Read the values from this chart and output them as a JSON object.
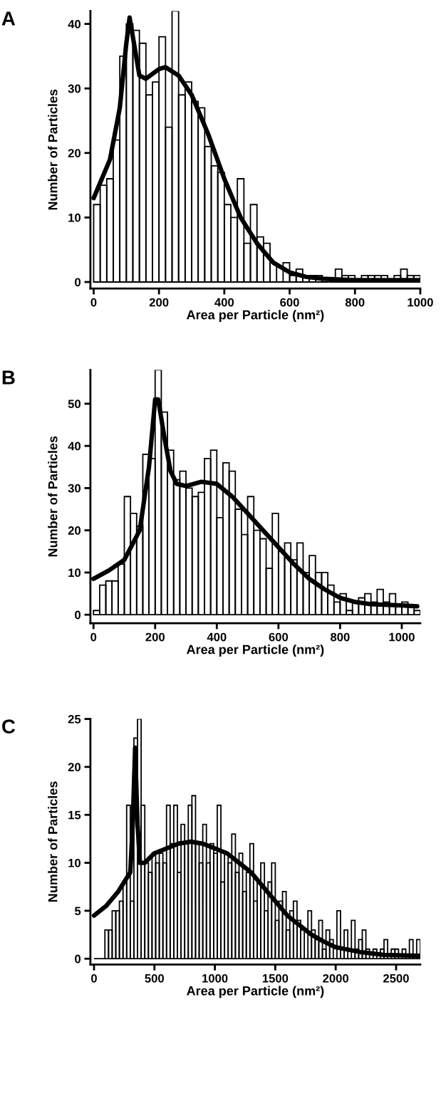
{
  "chart_data": [
    {
      "type": "histogram",
      "title": "A",
      "xlabel": "Area per Particle (nm²)",
      "ylabel": "Number of Particles",
      "xlim": [
        -10,
        1000
      ],
      "ylim": [
        -1,
        42
      ],
      "xticks": [
        0,
        200,
        400,
        600,
        800,
        1000
      ],
      "yticks": [
        0,
        10,
        20,
        30,
        40
      ],
      "grid": false,
      "legend": false,
      "marker": "none",
      "series": [
        {
          "color": "#000000",
          "bins": [
            0,
            20,
            40,
            60,
            80,
            100,
            120,
            140,
            160,
            180,
            200,
            220,
            240,
            260,
            280,
            300,
            320,
            340,
            360,
            380,
            400,
            420,
            440,
            460,
            480,
            500,
            520,
            540,
            560,
            580,
            600,
            620,
            640,
            660,
            680,
            700,
            720,
            740,
            760,
            780,
            800,
            820,
            840,
            860,
            880,
            900,
            920,
            940,
            960,
            980,
            1000
          ],
          "values": [
            12,
            15,
            16,
            22,
            35,
            40,
            39,
            37,
            29,
            31,
            38,
            24,
            42,
            29,
            31,
            28,
            27,
            21,
            18,
            17,
            12,
            10,
            16,
            6,
            12,
            7,
            6,
            3,
            0,
            3,
            1,
            2,
            1,
            1,
            1,
            0,
            0,
            2,
            1,
            1,
            0,
            1,
            1,
            1,
            1,
            0,
            1,
            2,
            1,
            1
          ]
        },
        {
          "type": "line",
          "color": "#000000",
          "x": [
            0,
            50,
            80,
            100,
            110,
            120,
            140,
            160,
            200,
            220,
            260,
            300,
            350,
            400,
            450,
            500,
            550,
            600,
            650,
            700,
            800,
            1000
          ],
          "values": [
            13,
            19,
            27,
            37,
            41,
            38,
            32,
            31.5,
            33,
            33.3,
            32,
            29,
            23,
            16,
            10,
            6,
            3,
            1.5,
            0.8,
            0.5,
            0.3,
            0.3
          ]
        }
      ]
    },
    {
      "type": "histogram",
      "title": "B",
      "xlabel": "Area per Particle (nm²)",
      "ylabel": "Number of Particles",
      "xlim": [
        -10,
        1060
      ],
      "ylim": [
        -2,
        58
      ],
      "xticks": [
        0,
        200,
        400,
        600,
        800,
        1000
      ],
      "yticks": [
        0,
        10,
        20,
        30,
        40,
        50
      ],
      "grid": false,
      "legend": false,
      "marker": "none",
      "series": [
        {
          "color": "#000000",
          "bins": [
            0,
            20,
            40,
            60,
            80,
            100,
            120,
            140,
            160,
            180,
            200,
            220,
            240,
            260,
            280,
            300,
            320,
            340,
            360,
            380,
            400,
            420,
            440,
            460,
            480,
            500,
            520,
            540,
            560,
            580,
            600,
            620,
            640,
            660,
            680,
            700,
            720,
            740,
            760,
            780,
            800,
            820,
            840,
            860,
            880,
            900,
            920,
            940,
            960,
            980,
            1000,
            1020,
            1040,
            1060
          ],
          "values": [
            1,
            7,
            8,
            8,
            12,
            28,
            24,
            21,
            38,
            37,
            58,
            48,
            39,
            32,
            34,
            30,
            28,
            29,
            37,
            39,
            23,
            36,
            34,
            25,
            19,
            28,
            20,
            18,
            11,
            24,
            15,
            17,
            13,
            17,
            10,
            14,
            10,
            10,
            7,
            3,
            5,
            1,
            3,
            4,
            5,
            3,
            6,
            3,
            5,
            2,
            3,
            2,
            1
          ]
        },
        {
          "type": "line",
          "color": "#000000",
          "x": [
            0,
            50,
            100,
            150,
            180,
            200,
            210,
            230,
            250,
            270,
            300,
            350,
            400,
            450,
            500,
            550,
            600,
            650,
            700,
            750,
            800,
            850,
            900,
            1000,
            1050
          ],
          "values": [
            8.5,
            10.5,
            13,
            20,
            35,
            51,
            51,
            42,
            34,
            31,
            30.5,
            31.5,
            31,
            28,
            24,
            20,
            16,
            12,
            8.5,
            6,
            4,
            3,
            2.5,
            2.2,
            2
          ]
        }
      ]
    },
    {
      "type": "histogram",
      "title": "C",
      "xlabel": "Area per Particle (nm²)",
      "ylabel": "Number of Particles",
      "xlim": [
        -30,
        2700
      ],
      "ylim": [
        -0.6,
        25
      ],
      "xticks": [
        0,
        500,
        1000,
        1500,
        2000,
        2500
      ],
      "yticks": [
        0,
        5,
        10,
        15,
        20,
        25
      ],
      "grid": false,
      "legend": false,
      "marker": "none",
      "series": [
        {
          "color": "#000000",
          "bins": [
            0,
            30,
            60,
            90,
            120,
            150,
            180,
            210,
            240,
            270,
            300,
            330,
            360,
            390,
            420,
            450,
            480,
            510,
            540,
            570,
            600,
            630,
            660,
            690,
            720,
            750,
            780,
            810,
            840,
            870,
            900,
            930,
            960,
            990,
            1020,
            1050,
            1080,
            1110,
            1140,
            1170,
            1200,
            1230,
            1260,
            1290,
            1320,
            1350,
            1380,
            1410,
            1440,
            1470,
            1500,
            1530,
            1560,
            1590,
            1620,
            1650,
            1680,
            1710,
            1740,
            1770,
            1800,
            1830,
            1860,
            1890,
            1920,
            1950,
            1980,
            2010,
            2040,
            2070,
            2100,
            2130,
            2160,
            2190,
            2220,
            2250,
            2280,
            2310,
            2340,
            2370,
            2400,
            2430,
            2460,
            2490,
            2520,
            2550,
            2580,
            2610,
            2640,
            2670,
            2700
          ],
          "values": [
            0,
            0,
            0,
            3,
            3,
            5,
            5,
            6,
            8,
            16,
            6,
            23,
            25,
            16,
            10,
            9,
            11,
            10,
            11,
            10,
            16,
            12,
            16,
            9,
            14,
            12,
            16,
            17,
            12,
            10,
            14,
            10,
            12,
            11,
            16,
            8,
            11,
            10,
            13,
            9,
            11,
            7,
            9,
            12,
            6,
            8,
            10,
            5,
            8,
            10,
            4,
            6,
            7,
            3,
            5,
            6,
            4,
            3,
            0,
            5,
            3,
            2,
            4,
            1,
            3,
            2,
            0,
            5,
            1,
            3,
            0,
            4,
            1,
            2,
            3,
            1,
            0,
            1,
            0,
            1,
            2,
            0,
            1,
            1,
            0,
            1,
            0,
            2,
            0,
            2
          ]
        },
        {
          "type": "line",
          "color": "#000000",
          "x": [
            0,
            100,
            200,
            300,
            320,
            340,
            360,
            380,
            420,
            500,
            600,
            700,
            800,
            900,
            1000,
            1100,
            1200,
            1300,
            1400,
            1500,
            1600,
            1700,
            1800,
            1900,
            2000,
            2200,
            2400,
            2700
          ],
          "values": [
            4.5,
            5.5,
            7,
            9,
            14,
            22,
            14,
            10,
            10,
            11,
            11.5,
            12,
            12.2,
            12,
            11.5,
            11,
            10,
            9,
            7.5,
            6,
            4.5,
            3.5,
            2.5,
            1.8,
            1.2,
            0.7,
            0.4,
            0.3
          ]
        }
      ]
    }
  ]
}
